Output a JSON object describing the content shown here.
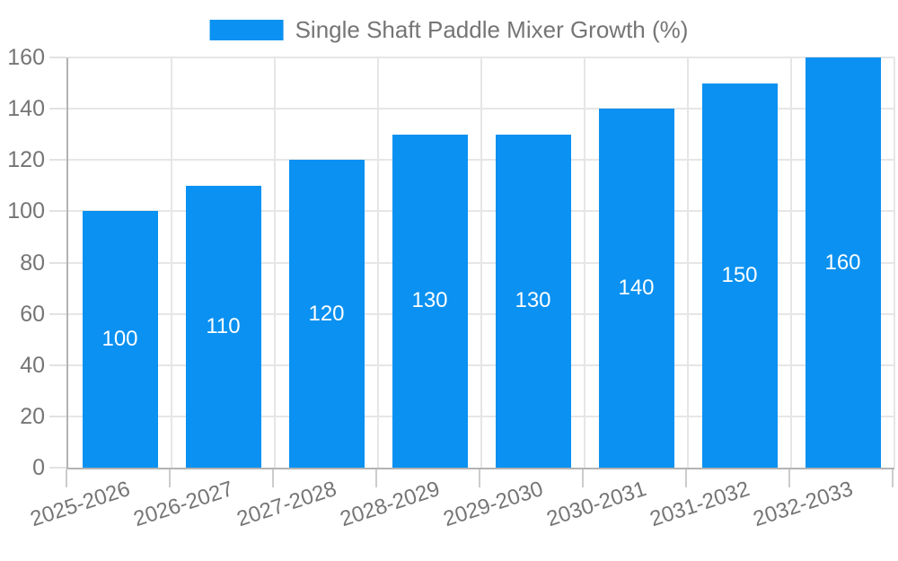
{
  "legend": {
    "label": "Single Shaft Paddle Mixer Growth (%)"
  },
  "colors": {
    "bar": "#0a91f1",
    "bar_label": "#ffffff",
    "axis_text": "#757575",
    "grid": "#e6e6e6",
    "axis_line": "#b3b3b3",
    "tick": "#cccccc",
    "background": "#ffffff"
  },
  "chart_data": {
    "type": "bar",
    "title": "Single Shaft Paddle Mixer Growth (%)",
    "categories": [
      "2025-2026",
      "2026-2027",
      "2027-2028",
      "2028-2029",
      "2029-2030",
      "2030-2031",
      "2031-2032",
      "2032-2033"
    ],
    "series": [
      {
        "name": "Single Shaft Paddle Mixer Growth (%)",
        "values": [
          100,
          110,
          120,
          130,
          130,
          140,
          150,
          160
        ]
      }
    ],
    "values": [
      100,
      110,
      120,
      130,
      130,
      140,
      150,
      160
    ],
    "bar_labels": [
      "100",
      "110",
      "120",
      "130",
      "130",
      "140",
      "150",
      "160"
    ],
    "xlabel": "",
    "ylabel": "",
    "ylim": [
      0,
      160
    ],
    "yticks": [
      0,
      20,
      40,
      60,
      80,
      100,
      120,
      140,
      160
    ],
    "grid": true,
    "legend_position": "top",
    "bar_labels_visible": true
  }
}
